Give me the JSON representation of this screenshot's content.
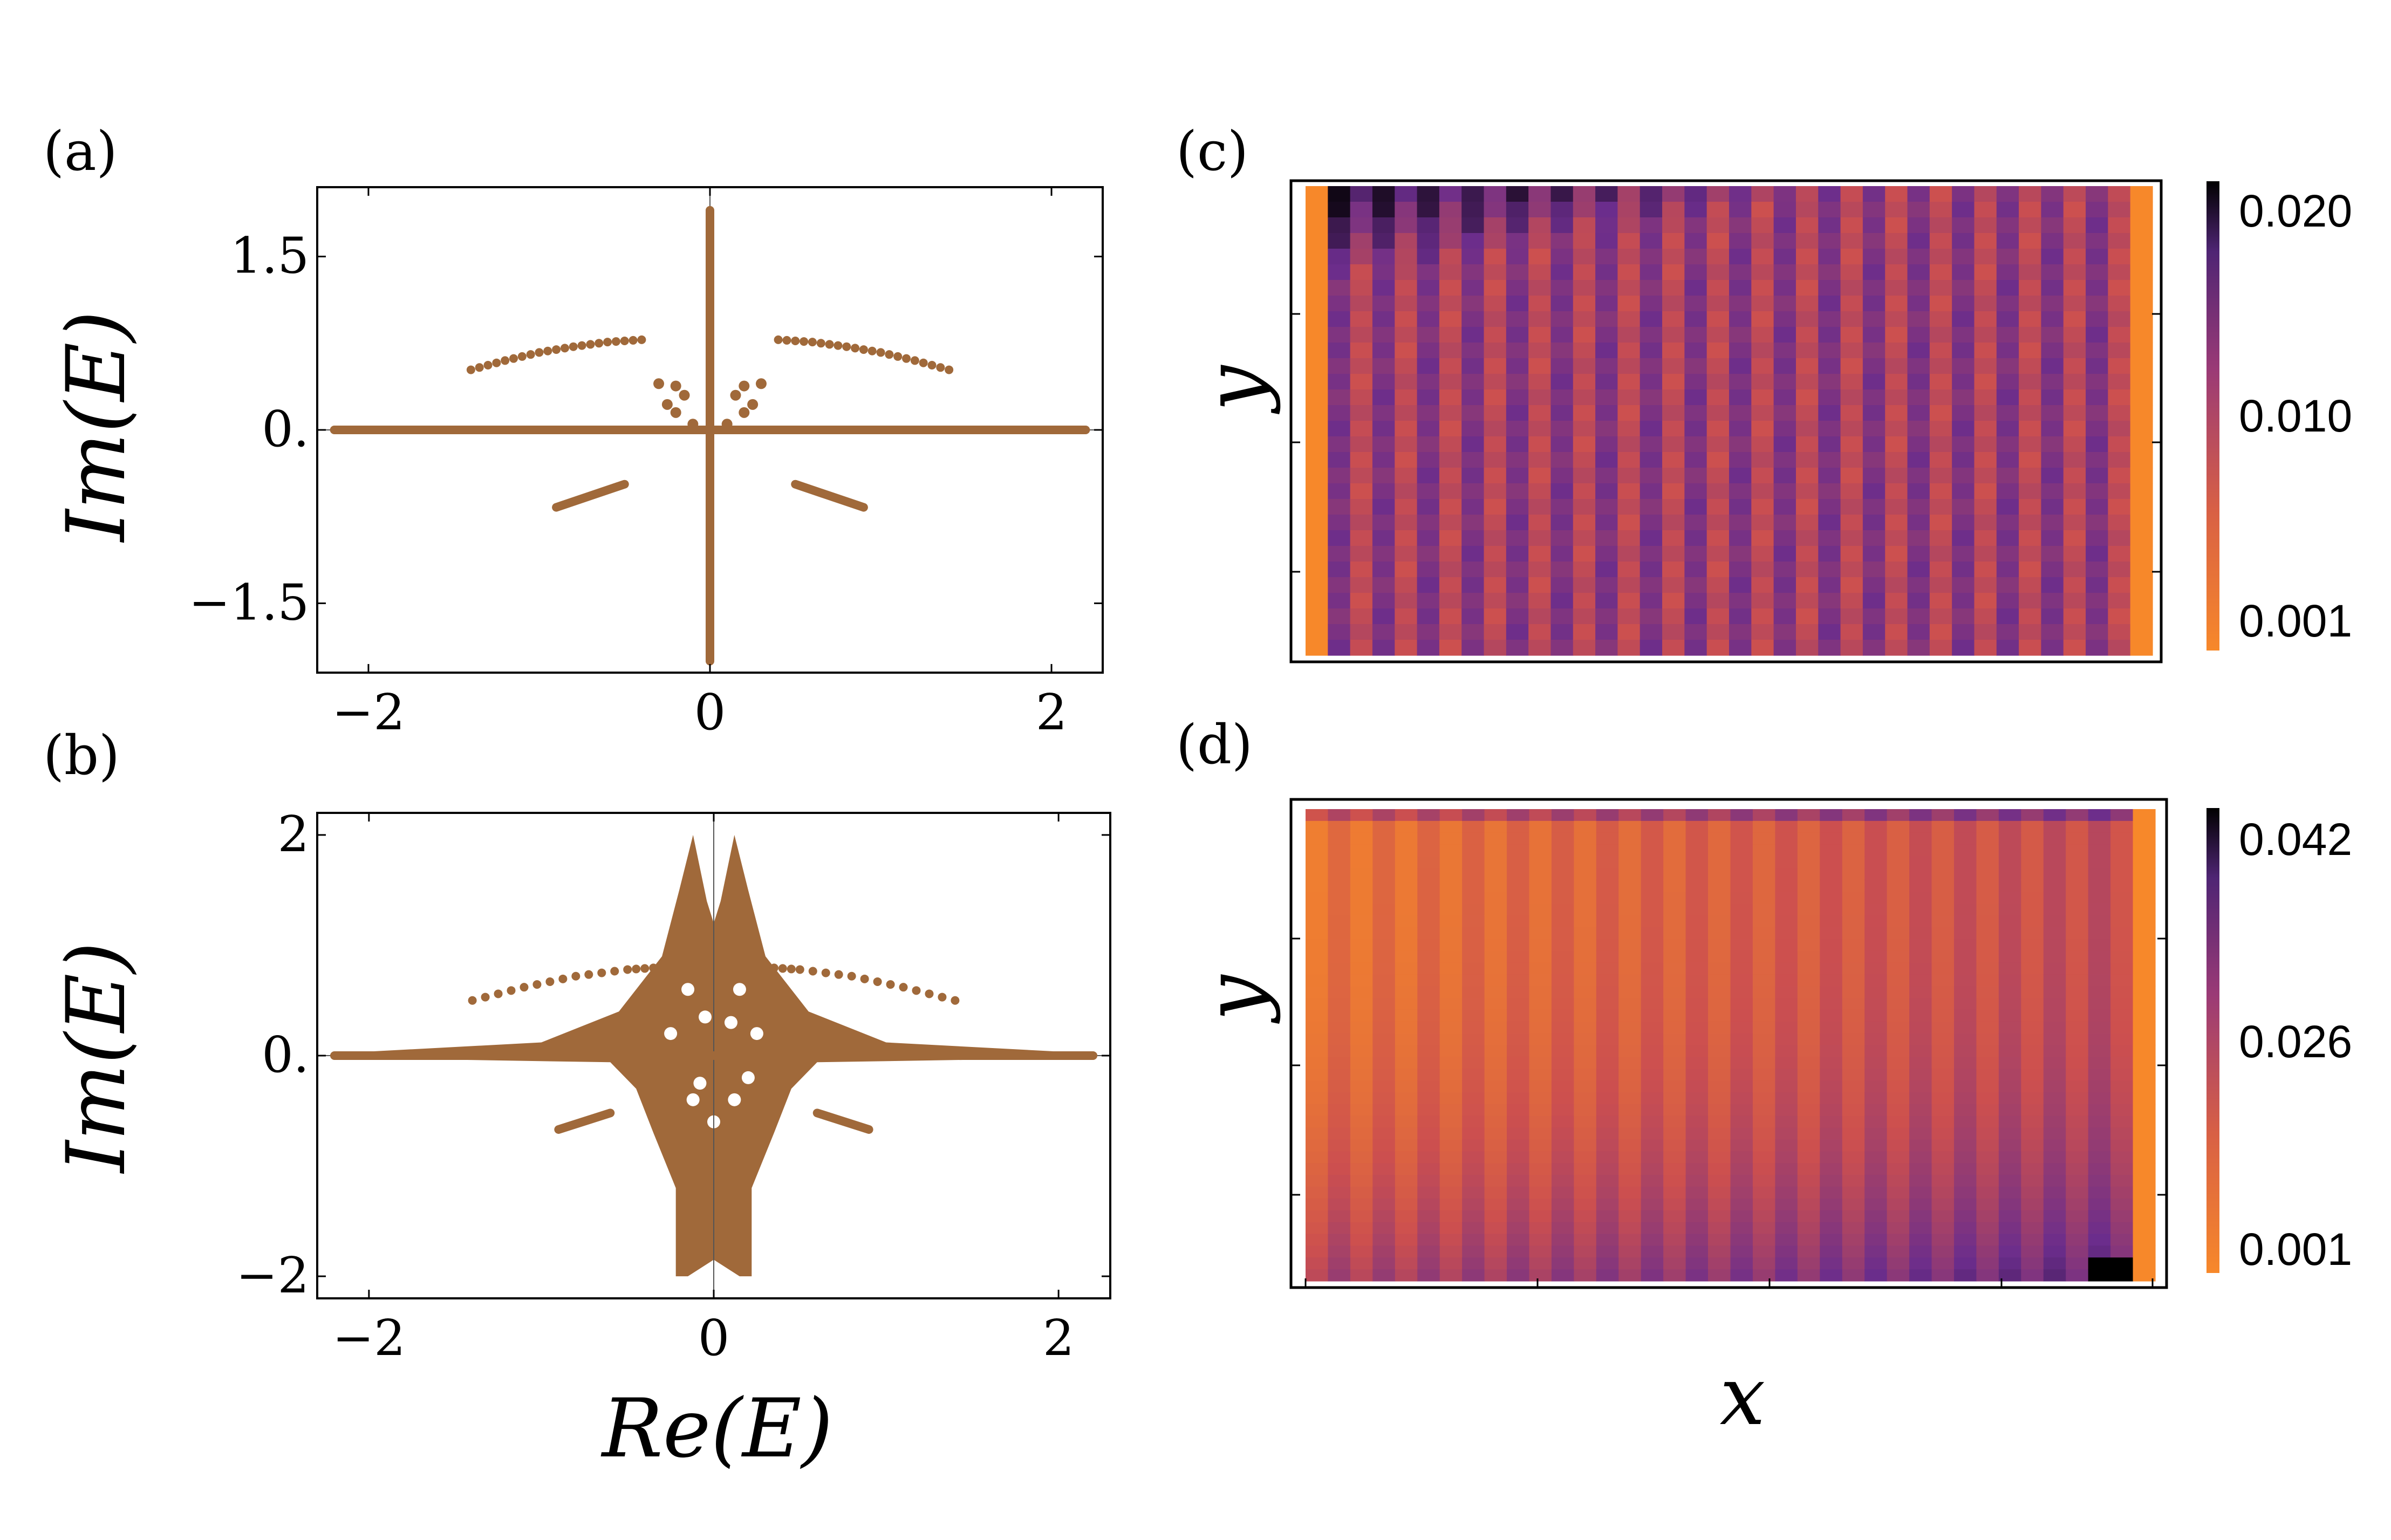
{
  "figure": {
    "panels": [
      {
        "id": "a",
        "label": "(a)"
      },
      {
        "id": "b",
        "label": "(b)"
      },
      {
        "id": "c",
        "label": "(c)"
      },
      {
        "id": "d",
        "label": "(d)"
      }
    ]
  },
  "chart_data": [
    {
      "panel": "a",
      "type": "scatter",
      "title": "",
      "xlabel": "",
      "ylabel": "Im(E)",
      "xlim": [
        -2.3,
        2.3
      ],
      "ylim": [
        -2.1,
        2.1
      ],
      "xticks": [
        {
          "v": -2,
          "label": "−2"
        },
        {
          "v": 0,
          "label": "0"
        },
        {
          "v": 2,
          "label": "2"
        }
      ],
      "yticks": [
        {
          "v": 1.5,
          "label": "1.5"
        },
        {
          "v": 0,
          "label": "0."
        },
        {
          "v": -1.5,
          "label": "−1.5"
        }
      ],
      "color": "#a0693a",
      "grid": false,
      "description_of_points": {
        "real_axis": {
          "x_range": [
            -2.2,
            2.2
          ],
          "y": 0
        },
        "imag_axis": {
          "x": 0,
          "y_range": [
            -2.0,
            1.9
          ]
        },
        "upper_arcs": [
          {
            "x": [
              -1.4,
              -1.2,
              -1.0,
              -0.8,
              -0.6,
              -0.4
            ],
            "y": [
              0.52,
              0.6,
              0.67,
              0.72,
              0.76,
              0.78
            ]
          },
          {
            "x": [
              0.4,
              0.6,
              0.8,
              1.0,
              1.2,
              1.4
            ],
            "y": [
              0.78,
              0.76,
              0.72,
              0.67,
              0.6,
              0.52
            ]
          }
        ],
        "lower_segments": [
          {
            "x": [
              -0.9,
              -0.5
            ],
            "y": [
              -0.67,
              -0.47
            ]
          },
          {
            "x": [
              0.5,
              0.9
            ],
            "y": [
              -0.47,
              -0.67
            ]
          }
        ],
        "central_clusters": [
          {
            "x": [
              -0.3,
              -0.2,
              -0.15,
              -0.25,
              -0.2,
              -0.1
            ],
            "y": [
              0.4,
              0.38,
              0.3,
              0.22,
              0.15,
              0.05
            ]
          },
          {
            "x": [
              0.3,
              0.2,
              0.15,
              0.25,
              0.2,
              0.1
            ],
            "y": [
              0.4,
              0.38,
              0.3,
              0.22,
              0.15,
              0.05
            ]
          }
        ]
      }
    },
    {
      "panel": "b",
      "type": "scatter",
      "title": "",
      "xlabel": "Re(E)",
      "ylabel": "Im(E)",
      "xlim": [
        -2.3,
        2.3
      ],
      "ylim": [
        -2.2,
        2.2
      ],
      "xticks": [
        {
          "v": -2,
          "label": "−2"
        },
        {
          "v": 0,
          "label": "0"
        },
        {
          "v": 2,
          "label": "2"
        }
      ],
      "yticks": [
        {
          "v": 2,
          "label": "2"
        },
        {
          "v": 0,
          "label": "0."
        },
        {
          "v": -2,
          "label": "−2"
        }
      ],
      "color": "#a0693a",
      "grid": false,
      "description_of_points": {
        "real_axis": {
          "x_range": [
            -2.2,
            2.2
          ],
          "y": 0
        },
        "upper_arcs": [
          {
            "x": [
              -1.4,
              -1.1,
              -0.8,
              -0.5,
              -0.3
            ],
            "y": [
              0.5,
              0.62,
              0.72,
              0.78,
              0.8
            ]
          },
          {
            "x": [
              0.3,
              0.5,
              0.8,
              1.1,
              1.4
            ],
            "y": [
              0.8,
              0.78,
              0.72,
              0.62,
              0.5
            ]
          }
        ],
        "lower_segments": [
          {
            "x": [
              -0.9,
              -0.6
            ],
            "y": [
              -0.67,
              -0.52
            ]
          },
          {
            "x": [
              0.6,
              0.9
            ],
            "y": [
              -0.52,
              -0.67
            ]
          }
        ],
        "central_body": {
          "upper_tips": [
            [
              -0.12,
              2.0
            ],
            [
              0.12,
              2.0
            ]
          ],
          "lower_tips": [
            [
              -0.2,
              -2.0
            ],
            [
              0.2,
              -2.0
            ]
          ]
        }
      }
    },
    {
      "panel": "c",
      "type": "heatmap",
      "title": "",
      "xlabel": "",
      "ylabel": "y",
      "colorbar": {
        "ticks": [
          "0.020",
          "0.010",
          "0.001"
        ],
        "range": [
          0.001,
          0.021
        ],
        "colors": [
          "#f7882a",
          "#cc4f4f",
          "#6b2d8c",
          "#000000"
        ]
      },
      "description": "Vertical alternating stripes across x; outer columns (left and right edges) orange; highest values (dark) at top-left corner."
    },
    {
      "panel": "d",
      "type": "heatmap",
      "title": "",
      "xlabel": "x",
      "ylabel": "y",
      "colorbar": {
        "ticks": [
          "0.042",
          "0.026",
          "0.001"
        ],
        "range": [
          0.001,
          0.044
        ],
        "colors": [
          "#f7882a",
          "#cc4f4f",
          "#6b2d8c",
          "#000000"
        ]
      },
      "description": "Vertical alternating stripes across x; intensity increases toward bottom-right corner where darkest values appear."
    }
  ]
}
